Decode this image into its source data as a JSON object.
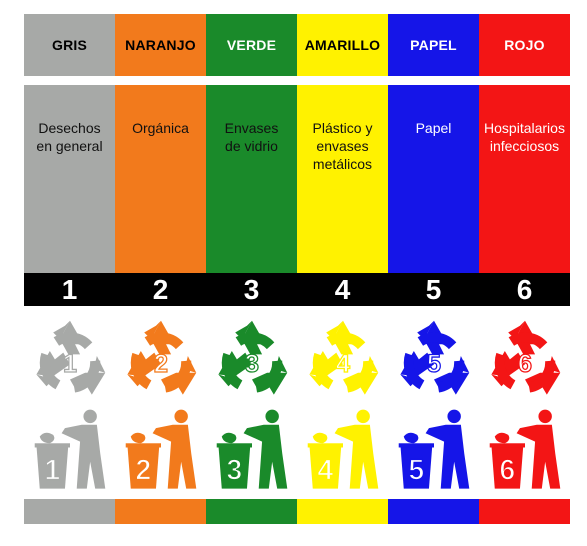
{
  "columns": [
    {
      "color_name": "GRIS",
      "color": "#a7a9a7",
      "header_text_color": "#000000",
      "desc_text_color": "#111111",
      "description": "Desechos\nen general",
      "number": "1"
    },
    {
      "color_name": "NARANJO",
      "color": "#f27a1c",
      "header_text_color": "#000000",
      "desc_text_color": "#111111",
      "description": "Orgánica",
      "number": "2"
    },
    {
      "color_name": "VERDE",
      "color": "#1a8a2a",
      "header_text_color": "#ffffff",
      "desc_text_color": "#111111",
      "description": "Envases\nde vidrio",
      "number": "3"
    },
    {
      "color_name": "AMARILLO",
      "color": "#fff200",
      "header_text_color": "#000000",
      "desc_text_color": "#111111",
      "description": "Plástico y\nenvases\nmetálicos",
      "number": "4"
    },
    {
      "color_name": "PAPEL",
      "color": "#1515e8",
      "header_text_color": "#ffffff",
      "desc_text_color": "#ffffff",
      "description": "Papel",
      "number": "5"
    },
    {
      "color_name": "ROJO",
      "color": "#f31515",
      "header_text_color": "#ffffff",
      "desc_text_color": "#ffffff",
      "description": "Hospitalarios\ninfecciosos",
      "number": "6"
    }
  ],
  "icons": {
    "top_row": "recycling-symbol-icon",
    "bottom_row": "person-trash-bin-icon"
  }
}
